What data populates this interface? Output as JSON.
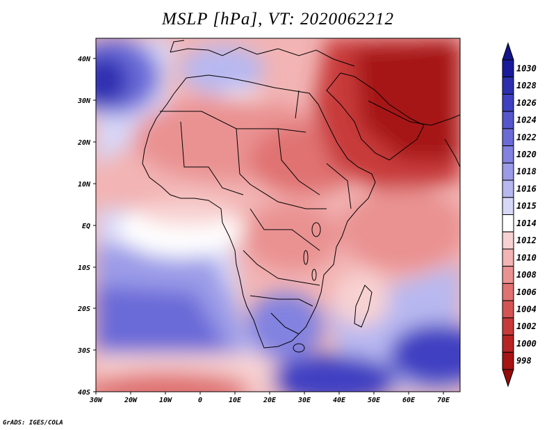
{
  "title": "MSLP [hPa], VT: 2020062212",
  "credit": "GrADS: IGES/COLA",
  "lon_ticks": [
    "30W",
    "20W",
    "10W",
    "0",
    "10E",
    "20E",
    "30E",
    "40E",
    "50E",
    "60E",
    "70E"
  ],
  "lat_ticks": [
    "40N",
    "30N",
    "20N",
    "10N",
    "EQ",
    "10S",
    "20S",
    "30S",
    "40S"
  ],
  "colorbar": {
    "levels": [
      "1030",
      "1028",
      "1026",
      "1024",
      "1022",
      "1020",
      "1018",
      "1016",
      "1015",
      "1014",
      "1012",
      "1010",
      "1008",
      "1006",
      "1004",
      "1002",
      "1000",
      "998"
    ],
    "colors": [
      "#1a1a9c",
      "#2e2eb0",
      "#4040c2",
      "#5656cc",
      "#6b6bd8",
      "#8282e0",
      "#9b9be8",
      "#b8b8f0",
      "#d7d7f8",
      "#ffffff",
      "#f8d2d2",
      "#f2b4b4",
      "#ea9292",
      "#e07272",
      "#d45454",
      "#c83a3a",
      "#b82424",
      "#a61414"
    ],
    "top_color": "#14148a",
    "bottom_color": "#950c0c"
  }
}
